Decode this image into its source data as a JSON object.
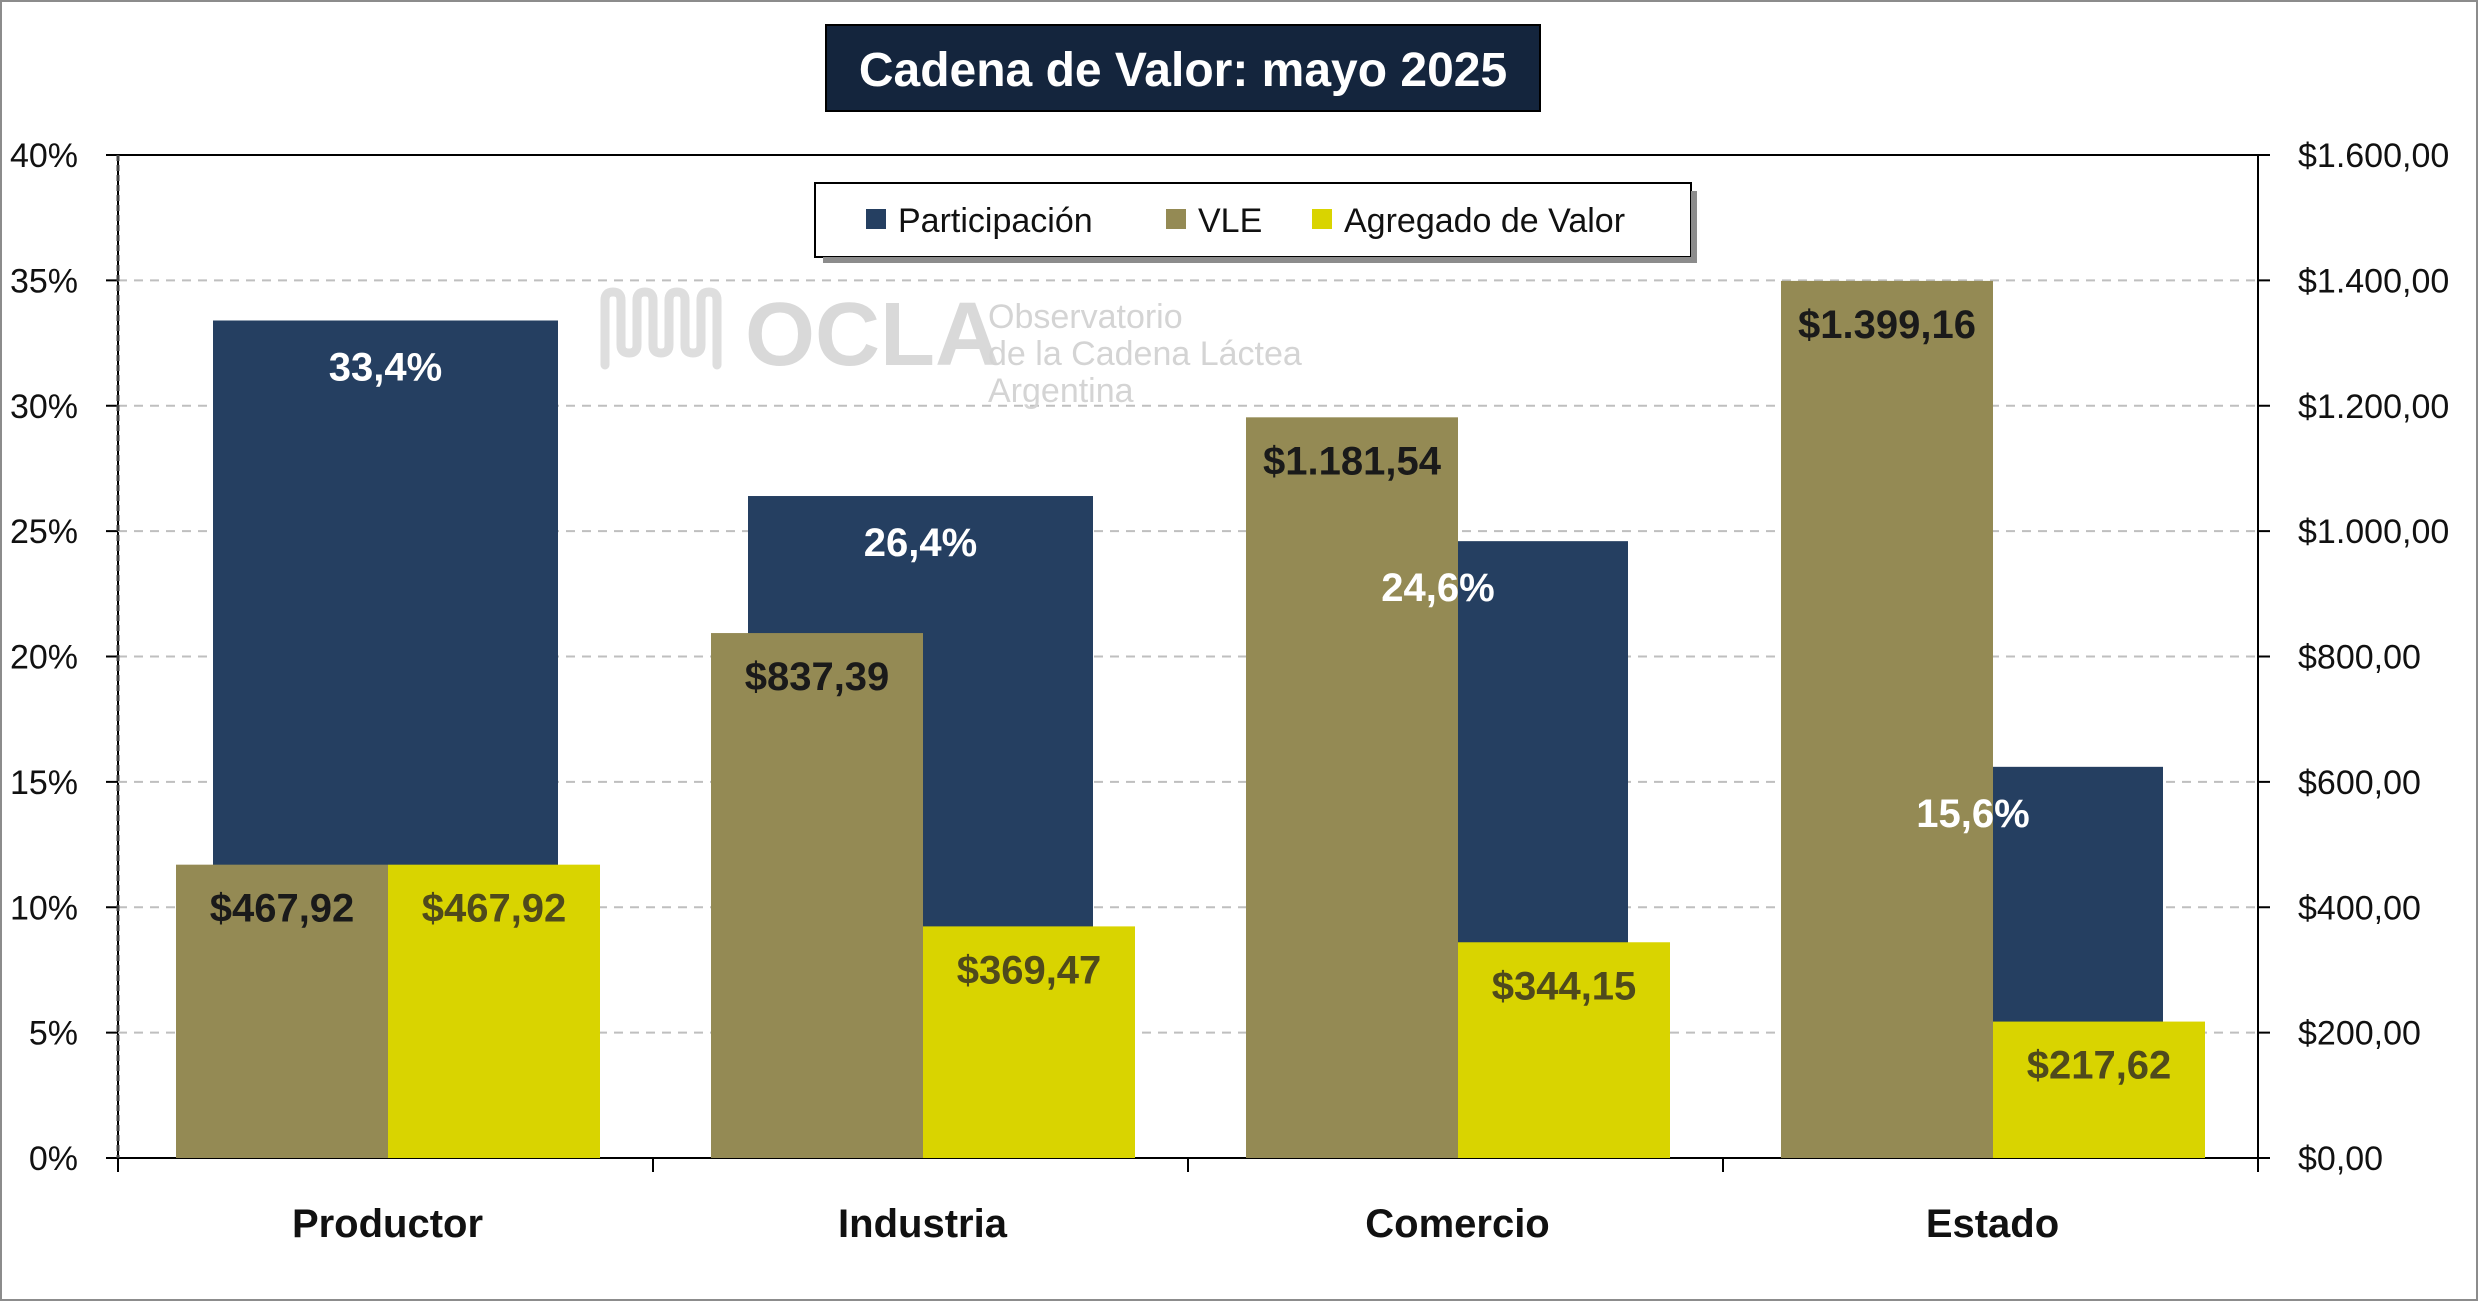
{
  "title": "Cadena de Valor: mayo 2025",
  "watermark": {
    "brand": "OCLA",
    "line1": "Observatorio",
    "line2": "de la Cadena Láctea",
    "line3": "Argentina"
  },
  "colors": {
    "participacion": "#253f61",
    "vle": "#948a54",
    "agregado": "#d9d400",
    "title_bg": "#14253d",
    "grid": "#bfbfbf",
    "label_dark": "#1a1a1a",
    "label_light": "#ffffff",
    "label_yellow": "#4f4a1c"
  },
  "chart_data": {
    "type": "bar",
    "categories": [
      "Productor",
      "Industria",
      "Comercio",
      "Estado"
    ],
    "left_axis": {
      "min": 0,
      "max": 40,
      "step": 5,
      "tick_labels": [
        "0%",
        "5%",
        "10%",
        "15%",
        "20%",
        "25%",
        "30%",
        "35%",
        "40%"
      ]
    },
    "right_axis": {
      "min": 0,
      "max": 1600,
      "step": 200,
      "tick_labels": [
        "$0,00",
        "$200,00",
        "$400,00",
        "$600,00",
        "$800,00",
        "$1.000,00",
        "$1.200,00",
        "$1.400,00",
        "$1.600,00"
      ]
    },
    "grid": true,
    "legend_position": "top-center",
    "series": [
      {
        "key": "participacion",
        "name": "Participación",
        "axis": "left",
        "values": [
          33.4,
          26.4,
          24.6,
          15.6
        ],
        "labels": [
          "33,4%",
          "26,4%",
          "24,6%",
          "15,6%"
        ]
      },
      {
        "key": "vle",
        "name": "VLE",
        "axis": "right",
        "values": [
          467.92,
          837.39,
          1181.54,
          1399.16
        ],
        "labels": [
          "$467,92",
          "$837,39",
          "$1.181,54",
          "$1.399,16"
        ]
      },
      {
        "key": "agregado",
        "name": "Agregado de Valor",
        "axis": "right",
        "values": [
          467.92,
          369.47,
          344.15,
          217.62
        ],
        "labels": [
          "$467,92",
          "$369,47",
          "$344,15",
          "$217,62"
        ]
      }
    ]
  }
}
